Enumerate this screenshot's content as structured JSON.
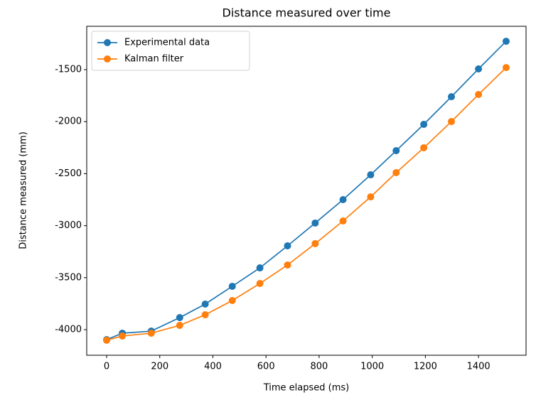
{
  "chart_data": {
    "type": "line",
    "title": "Distance measured over time",
    "x_label": "Time elapsed (ms)",
    "y_label": "Distance measured (mm)",
    "x": [
      0,
      59,
      168,
      275,
      371,
      473,
      577,
      681,
      785,
      890,
      994,
      1090,
      1194,
      1298,
      1400,
      1504
    ],
    "series": [
      {
        "name": "Experimental data",
        "color": "#1f77b4",
        "values": [
          -4096,
          -4034,
          -4014,
          -3884,
          -3754,
          -3583,
          -3406,
          -3194,
          -2975,
          -2750,
          -2511,
          -2279,
          -2026,
          -1760,
          -1493,
          -1227
        ]
      },
      {
        "name": "Kalman filter",
        "color": "#ff7f0e",
        "values": [
          -4102,
          -4061,
          -4034,
          -3959,
          -3857,
          -3720,
          -3556,
          -3378,
          -3173,
          -2955,
          -2723,
          -2490,
          -2251,
          -1999,
          -1739,
          -1480
        ]
      }
    ],
    "xlim": [
      -75,
      1579
    ],
    "ylim": [
      -4246,
      -1083
    ],
    "xticks": [
      0,
      200,
      400,
      600,
      800,
      1000,
      1200,
      1400
    ],
    "yticks": [
      -4000,
      -3500,
      -3000,
      -2500,
      -2000,
      -1500
    ],
    "grid": false,
    "legend": "upper left"
  }
}
